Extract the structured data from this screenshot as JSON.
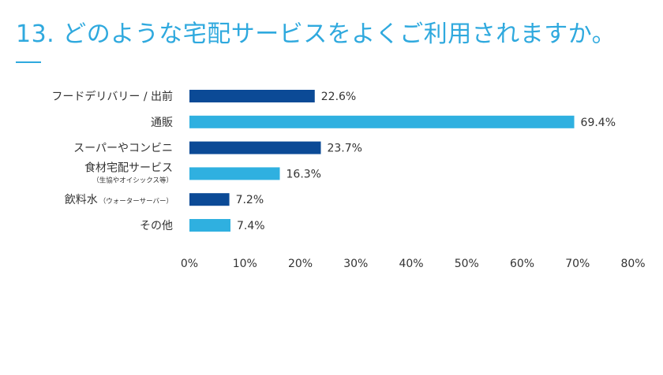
{
  "title": "13. どのような宅配サービスをよくご利用されますか。",
  "chart_data": {
    "type": "bar",
    "orientation": "horizontal",
    "categories": [
      {
        "label": "フードデリバリー / 出前",
        "sub": ""
      },
      {
        "label": "通販",
        "sub": ""
      },
      {
        "label": "スーパーやコンビニ",
        "sub": ""
      },
      {
        "label": "食材宅配サービス",
        "sub": "（生協やオイシックス等）"
      },
      {
        "label": "飲料水",
        "sub": "（ウォーターサーバー）"
      },
      {
        "label": "その他",
        "sub": ""
      }
    ],
    "values": [
      22.6,
      69.4,
      23.7,
      16.3,
      7.2,
      7.4
    ],
    "value_labels": [
      "22.6%",
      "69.4%",
      "23.7%",
      "16.3%",
      "7.2%",
      "7.4%"
    ],
    "xlim": [
      0,
      80
    ],
    "x_ticks": [
      "0%",
      "10%",
      "20%",
      "30%",
      "40%",
      "50%",
      "60%",
      "70%",
      "80%"
    ],
    "grid": false,
    "colors": [
      "#0b4a96",
      "#2fb0e0",
      "#0b4a96",
      "#2fb0e0",
      "#0b4a96",
      "#2fb0e0"
    ]
  }
}
